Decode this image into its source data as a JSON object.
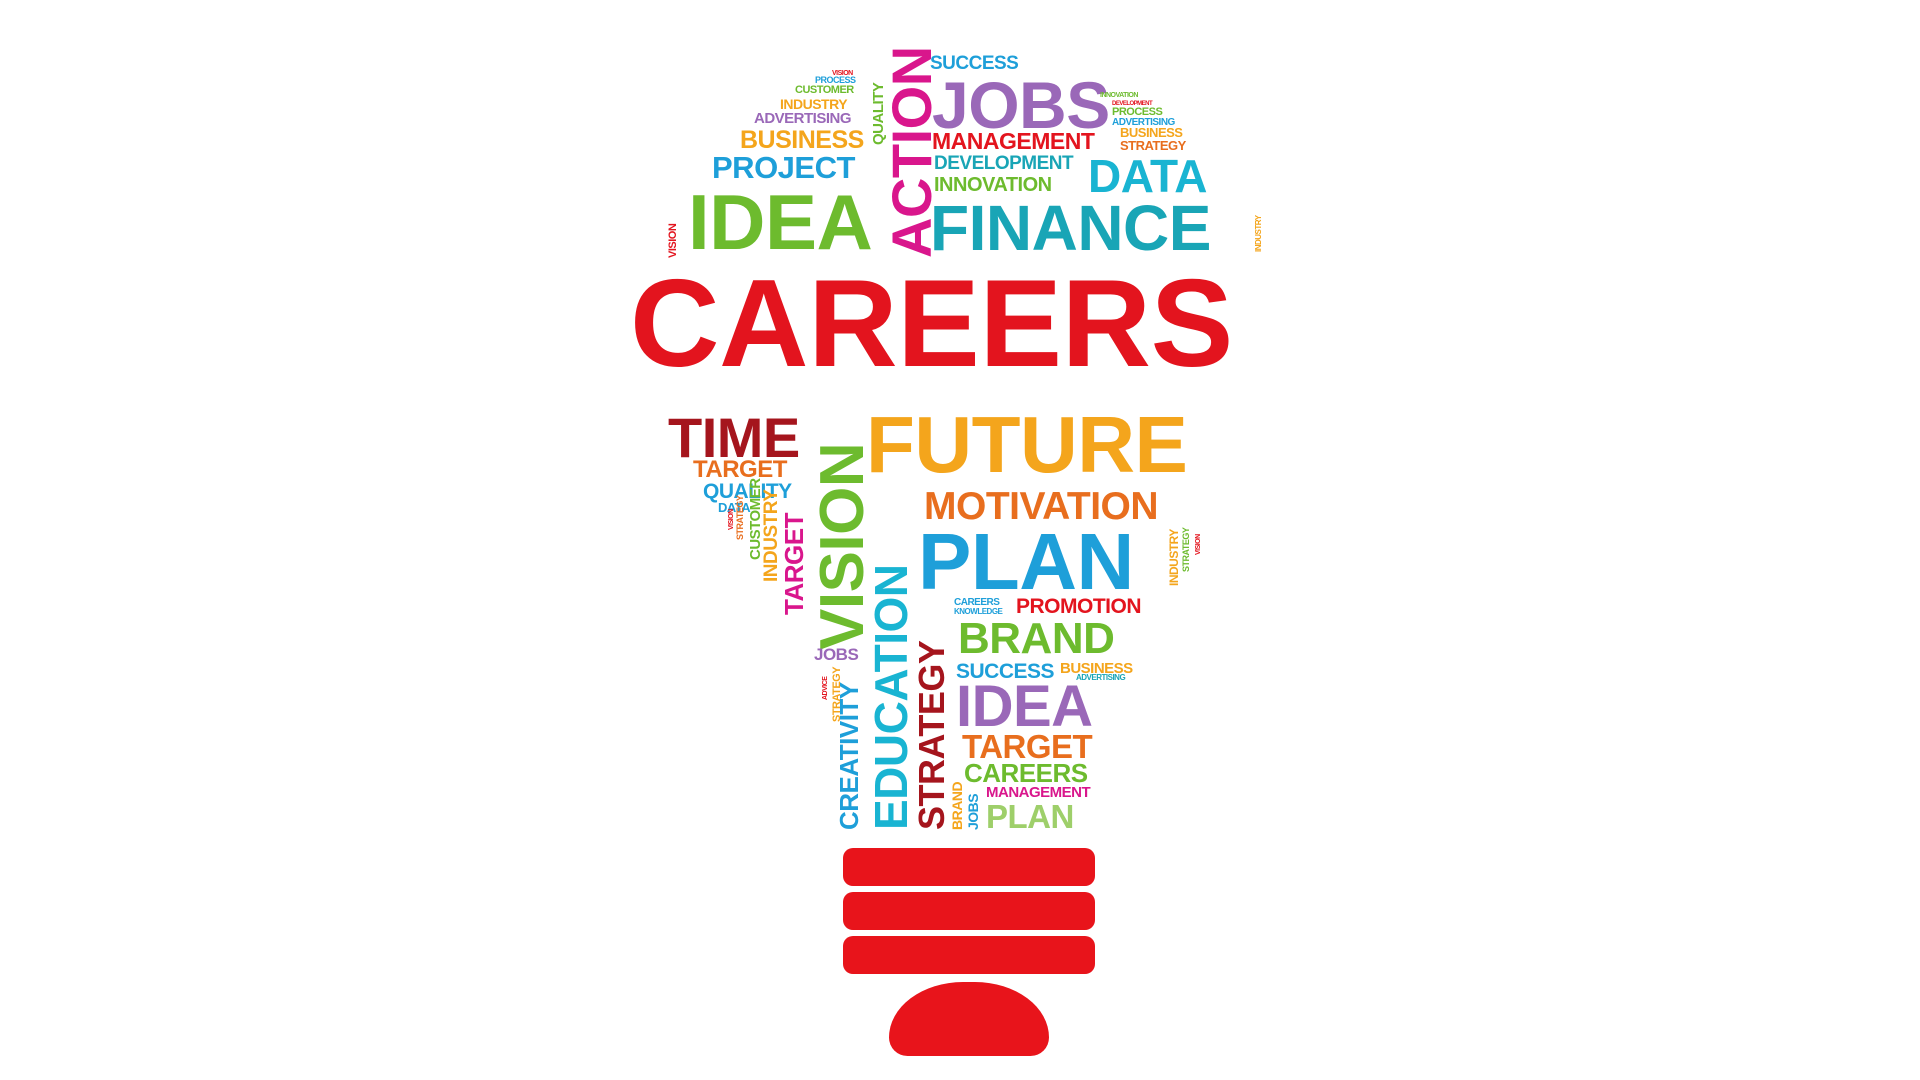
{
  "words": [
    {
      "text": "CAREERS",
      "color": "#e3141e"
    },
    {
      "text": "IDEA",
      "color": "#6dbb2e"
    },
    {
      "text": "FINANCE",
      "color": "#19a5b6"
    },
    {
      "text": "ACTION",
      "color": "#d9168c"
    },
    {
      "text": "JOBS",
      "color": "#9a68b8"
    },
    {
      "text": "SUCCESS",
      "color": "#1e9fd9"
    },
    {
      "text": "MANAGEMENT",
      "color": "#e3141e"
    },
    {
      "text": "DEVELOPMENT",
      "color": "#19a5b6"
    },
    {
      "text": "INNOVATION",
      "color": "#6dbb2e"
    },
    {
      "text": "DATA",
      "color": "#19b4d2"
    },
    {
      "text": "PROJECT",
      "color": "#1e9fd9"
    },
    {
      "text": "BUSINESS",
      "color": "#f4a51c"
    },
    {
      "text": "ADVERTISING",
      "color": "#9a68b8"
    },
    {
      "text": "INDUSTRY",
      "color": "#f4a51c"
    },
    {
      "text": "CUSTOMER",
      "color": "#6dbb2e"
    },
    {
      "text": "PROCESS",
      "color": "#1e9fd9"
    },
    {
      "text": "VISION",
      "color": "#e3141e"
    },
    {
      "text": "QUALITY",
      "color": "#6dbb2e"
    },
    {
      "text": "INNOVATION",
      "color": "#6dbb2e"
    },
    {
      "text": "DEVELOPMENT",
      "color": "#e3141e"
    },
    {
      "text": "PROCESS",
      "color": "#6dbb2e"
    },
    {
      "text": "ADVERTISING",
      "color": "#1e9fd9"
    },
    {
      "text": "BUSINESS",
      "color": "#f4a51c"
    },
    {
      "text": "STRATEGY",
      "color": "#e86e1e"
    },
    {
      "text": "VISION",
      "color": "#e3141e"
    },
    {
      "text": "INDUSTRY",
      "color": "#f4a51c"
    },
    {
      "text": "TIME",
      "color": "#a5151d"
    },
    {
      "text": "TARGET",
      "color": "#e86e1e"
    },
    {
      "text": "QUALITY",
      "color": "#1e9fd9"
    },
    {
      "text": "DATA",
      "color": "#1e9fd9"
    },
    {
      "text": "FUTURE",
      "color": "#f4a51c"
    },
    {
      "text": "MOTIVATION",
      "color": "#e86e1e"
    },
    {
      "text": "PLAN",
      "color": "#1e9fd9"
    },
    {
      "text": "VISION",
      "color": "#6dbb2e"
    },
    {
      "text": "TARGET",
      "color": "#d9168c"
    },
    {
      "text": "INDUSTRY",
      "color": "#f4a51c"
    },
    {
      "text": "CUSTOMER",
      "color": "#6dbb2e"
    },
    {
      "text": "STRATEGY",
      "color": "#e86e1e"
    },
    {
      "text": "VISION",
      "color": "#e3141e"
    },
    {
      "text": "EDUCATION",
      "color": "#19b4d2"
    },
    {
      "text": "STRATEGY",
      "color": "#a5151d"
    },
    {
      "text": "CREATIVITY",
      "color": "#1e9fd9"
    },
    {
      "text": "STRATEGY",
      "color": "#f4a51c"
    },
    {
      "text": "ADVICE",
      "color": "#e3141e"
    },
    {
      "text": "JOBS",
      "color": "#9a68b8"
    },
    {
      "text": "CAREERS",
      "color": "#1e9fd9"
    },
    {
      "text": "KNOWLEDGE",
      "color": "#1e9fd9"
    },
    {
      "text": "PROMOTION",
      "color": "#e3141e"
    },
    {
      "text": "BRAND",
      "color": "#6dbb2e"
    },
    {
      "text": "SUCCESS",
      "color": "#1e9fd9"
    },
    {
      "text": "BUSINESS",
      "color": "#f4a51c"
    },
    {
      "text": "ADVERTISING",
      "color": "#19a5b6"
    },
    {
      "text": "IDEA",
      "color": "#9a68b8"
    },
    {
      "text": "TARGET",
      "color": "#e86e1e"
    },
    {
      "text": "CAREERS",
      "color": "#6dbb2e"
    },
    {
      "text": "MANAGEMENT",
      "color": "#d9168c"
    },
    {
      "text": "PLAN",
      "color": "#9ecf6a"
    },
    {
      "text": "BRAND",
      "color": "#f4a51c"
    },
    {
      "text": "JOBS",
      "color": "#1e9fd9"
    },
    {
      "text": "INDUSTRY",
      "color": "#f4a51c"
    },
    {
      "text": "STRATEGY",
      "color": "#6dbb2e"
    },
    {
      "text": "VISION",
      "color": "#e3141e"
    }
  ],
  "bulb_base_color": "#e8141b"
}
